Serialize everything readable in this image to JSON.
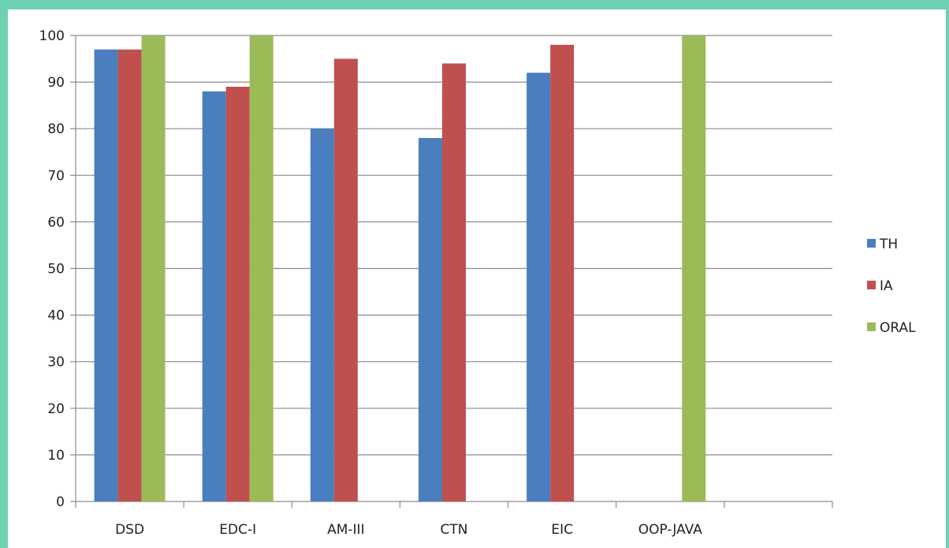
{
  "chart_data": {
    "type": "bar",
    "categories": [
      "DSD",
      "EDC-I",
      "AM-III",
      "CTN",
      "EIC",
      "OOP-JAVA"
    ],
    "series": [
      {
        "name": "TH",
        "color": "#4a7ebf",
        "values": [
          97,
          88,
          80,
          78,
          92,
          null
        ]
      },
      {
        "name": "IA",
        "color": "#c0504d",
        "values": [
          97,
          89,
          95,
          94,
          98,
          null
        ]
      },
      {
        "name": "ORAL",
        "color": "#9bbb59",
        "values": [
          100,
          100,
          null,
          null,
          null,
          100
        ]
      }
    ],
    "ylim": [
      0,
      100
    ],
    "yticks": [
      0,
      10,
      20,
      30,
      40,
      50,
      60,
      70,
      80,
      90,
      100
    ],
    "grid": true,
    "legend_position": "right"
  }
}
